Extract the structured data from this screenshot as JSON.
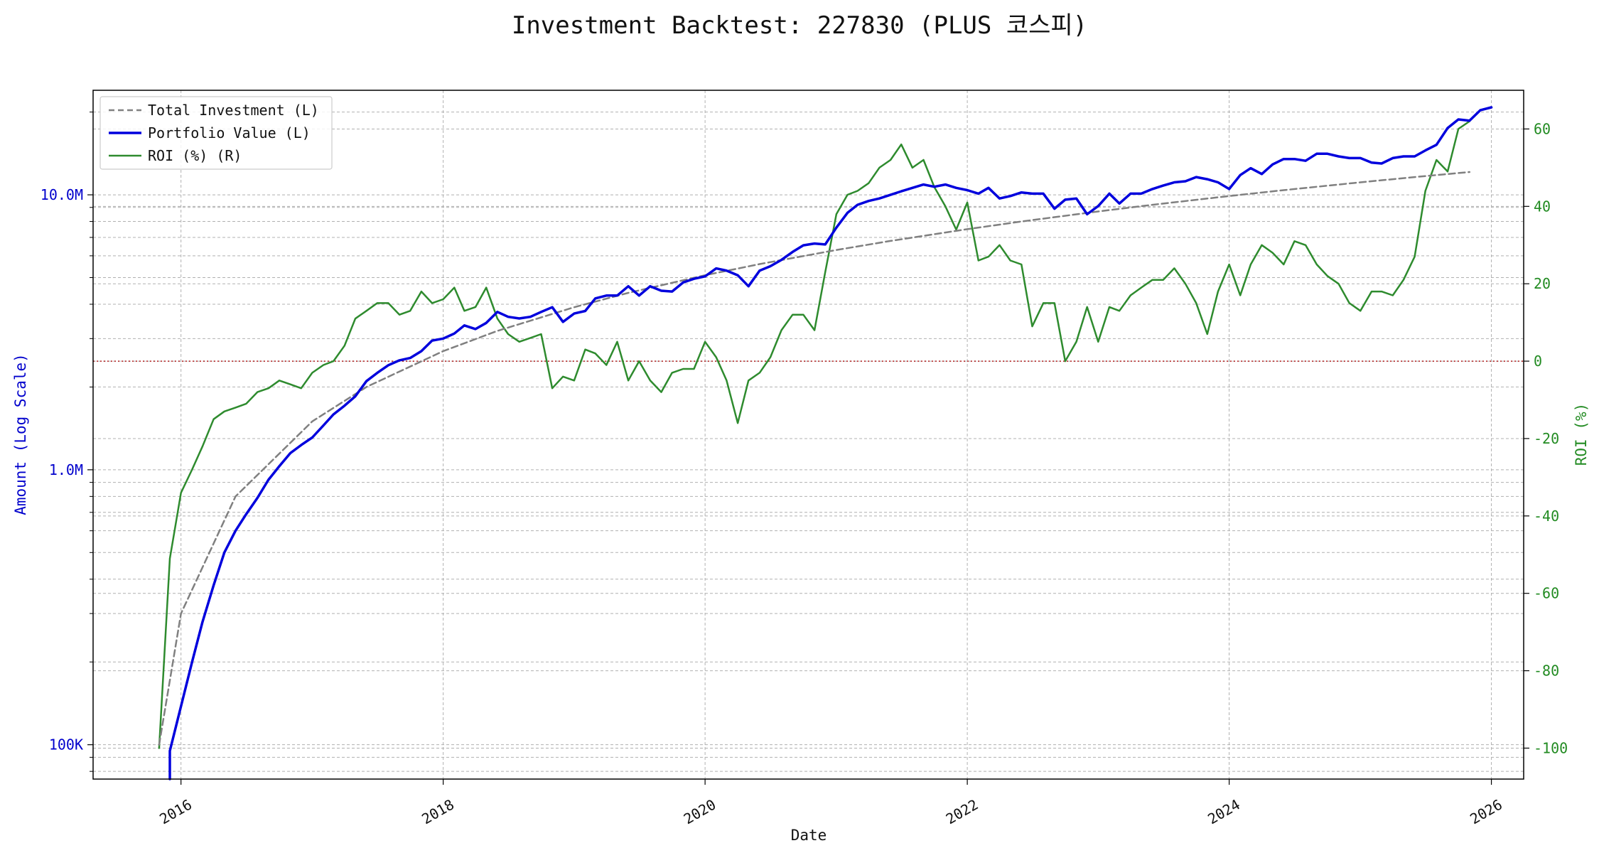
{
  "chart_data": {
    "type": "line",
    "title": "Investment Backtest: 227830 (PLUS 코스피)",
    "xlabel": "Date",
    "ylabel_left": "Amount (Log Scale)",
    "ylabel_right": "ROI (%)",
    "y_left_scale": "log",
    "y_left_range": [
      75000,
      24000000
    ],
    "y_left_ticks": [
      {
        "value": 100000,
        "label": "100K"
      },
      {
        "value": 1000000,
        "label": "1.0M"
      },
      {
        "value": 10000000,
        "label": "10.0M"
      }
    ],
    "y_right_range": [
      -108,
      70
    ],
    "y_right_ticks": [
      -100,
      -80,
      -60,
      -40,
      -20,
      0,
      20,
      40,
      60
    ],
    "x_range": [
      "2015-05-01",
      "2026-04-01"
    ],
    "x_ticks": [
      "2016",
      "2018",
      "2020",
      "2022",
      "2024",
      "2026"
    ],
    "grid": true,
    "legend_position": "upper-left",
    "reference_line": {
      "axis": "right",
      "value": 0,
      "color": "#b22222"
    },
    "colors": {
      "investment": "#808080",
      "portfolio": "#0000dd",
      "roi": "#2e8b2e",
      "left_axis": "#0000cc",
      "right_axis": "#228b22"
    },
    "series": [
      {
        "name": "Total Investment (L)",
        "axis": "left",
        "style": "dashed",
        "points": [
          [
            "2015-11-01",
            100000
          ],
          [
            "2016-01-01",
            300000
          ],
          [
            "2016-06-01",
            800000
          ],
          [
            "2017-01-01",
            1500000
          ],
          [
            "2017-06-01",
            2000000
          ],
          [
            "2018-01-01",
            2700000
          ],
          [
            "2018-06-01",
            3200000
          ],
          [
            "2019-01-01",
            3900000
          ],
          [
            "2019-06-01",
            4400000
          ],
          [
            "2020-01-01",
            5100000
          ],
          [
            "2020-06-01",
            5600000
          ],
          [
            "2021-01-01",
            6300000
          ],
          [
            "2021-06-01",
            6800000
          ],
          [
            "2022-01-01",
            7500000
          ],
          [
            "2022-06-01",
            8000000
          ],
          [
            "2023-01-01",
            8700000
          ],
          [
            "2023-06-01",
            9200000
          ],
          [
            "2024-01-01",
            9900000
          ],
          [
            "2024-06-01",
            10400000
          ],
          [
            "2025-01-01",
            11100000
          ],
          [
            "2025-06-01",
            11600000
          ],
          [
            "2025-11-01",
            12100000
          ]
        ]
      },
      {
        "name": "Portfolio Value (L)",
        "axis": "left",
        "style": "solid",
        "points": [
          [
            "2015-12-01",
            75000
          ],
          [
            "2015-12-01",
            95000
          ],
          [
            "2016-02-01",
            200000
          ],
          [
            "2016-03-01",
            280000
          ],
          [
            "2016-04-01",
            380000
          ],
          [
            "2016-05-01",
            500000
          ],
          [
            "2016-06-01",
            600000
          ],
          [
            "2016-07-01",
            690000
          ],
          [
            "2016-08-01",
            790000
          ],
          [
            "2016-09-01",
            920000
          ],
          [
            "2016-10-01",
            1030000
          ],
          [
            "2016-11-01",
            1150000
          ],
          [
            "2016-12-01",
            1230000
          ],
          [
            "2017-01-01",
            1310000
          ],
          [
            "2017-02-01",
            1450000
          ],
          [
            "2017-03-01",
            1590000
          ],
          [
            "2017-04-01",
            1710000
          ],
          [
            "2017-05-01",
            1850000
          ],
          [
            "2017-06-01",
            2100000
          ],
          [
            "2017-07-01",
            2250000
          ],
          [
            "2017-08-01",
            2400000
          ],
          [
            "2017-09-01",
            2500000
          ],
          [
            "2017-10-01",
            2550000
          ],
          [
            "2017-11-01",
            2700000
          ],
          [
            "2017-12-01",
            2950000
          ],
          [
            "2018-01-01",
            3000000
          ],
          [
            "2018-02-01",
            3130000
          ],
          [
            "2018-03-01",
            3350000
          ],
          [
            "2018-04-01",
            3250000
          ],
          [
            "2018-05-01",
            3420000
          ],
          [
            "2018-06-01",
            3750000
          ],
          [
            "2018-07-01",
            3600000
          ],
          [
            "2018-08-01",
            3550000
          ],
          [
            "2018-09-01",
            3600000
          ],
          [
            "2018-10-01",
            3750000
          ],
          [
            "2018-11-01",
            3900000
          ],
          [
            "2018-12-01",
            3450000
          ],
          [
            "2019-01-01",
            3700000
          ],
          [
            "2019-02-01",
            3780000
          ],
          [
            "2019-03-01",
            4200000
          ],
          [
            "2019-04-01",
            4300000
          ],
          [
            "2019-05-01",
            4300000
          ],
          [
            "2019-06-01",
            4650000
          ],
          [
            "2019-07-01",
            4300000
          ],
          [
            "2019-08-01",
            4650000
          ],
          [
            "2019-09-01",
            4480000
          ],
          [
            "2019-10-01",
            4450000
          ],
          [
            "2019-11-01",
            4800000
          ],
          [
            "2019-12-01",
            4950000
          ],
          [
            "2020-01-01",
            5050000
          ],
          [
            "2020-02-01",
            5400000
          ],
          [
            "2020-03-01",
            5300000
          ],
          [
            "2020-04-01",
            5100000
          ],
          [
            "2020-05-01",
            4650000
          ],
          [
            "2020-06-01",
            5300000
          ],
          [
            "2020-07-01",
            5500000
          ],
          [
            "2020-08-01",
            5800000
          ],
          [
            "2020-09-01",
            6200000
          ],
          [
            "2020-10-01",
            6550000
          ],
          [
            "2020-11-01",
            6650000
          ],
          [
            "2020-12-01",
            6600000
          ],
          [
            "2021-01-01",
            7600000
          ],
          [
            "2021-02-01",
            8600000
          ],
          [
            "2021-03-01",
            9200000
          ],
          [
            "2021-04-01",
            9500000
          ],
          [
            "2021-05-01",
            9700000
          ],
          [
            "2021-06-01",
            10000000
          ],
          [
            "2021-07-01",
            10300000
          ],
          [
            "2021-08-01",
            10600000
          ],
          [
            "2021-09-01",
            10900000
          ],
          [
            "2021-10-01",
            10700000
          ],
          [
            "2021-11-01",
            10900000
          ],
          [
            "2021-12-01",
            10600000
          ],
          [
            "2022-01-01",
            10400000
          ],
          [
            "2022-02-01",
            10100000
          ],
          [
            "2022-03-01",
            10600000
          ],
          [
            "2022-04-01",
            9700000
          ],
          [
            "2022-05-01",
            9900000
          ],
          [
            "2022-06-01",
            10200000
          ],
          [
            "2022-07-01",
            10100000
          ],
          [
            "2022-08-01",
            10100000
          ],
          [
            "2022-09-01",
            8900000
          ],
          [
            "2022-10-01",
            9600000
          ],
          [
            "2022-11-01",
            9700000
          ],
          [
            "2022-12-01",
            8500000
          ],
          [
            "2023-01-01",
            9100000
          ],
          [
            "2023-02-01",
            10100000
          ],
          [
            "2023-03-01",
            9300000
          ],
          [
            "2023-04-01",
            10100000
          ],
          [
            "2023-05-01",
            10100000
          ],
          [
            "2023-06-01",
            10500000
          ],
          [
            "2023-07-01",
            10800000
          ],
          [
            "2023-08-01",
            11100000
          ],
          [
            "2023-09-01",
            11200000
          ],
          [
            "2023-10-01",
            11600000
          ],
          [
            "2023-11-01",
            11400000
          ],
          [
            "2023-12-01",
            11100000
          ],
          [
            "2024-01-01",
            10500000
          ],
          [
            "2024-02-01",
            11800000
          ],
          [
            "2024-03-01",
            12500000
          ],
          [
            "2024-04-01",
            11900000
          ],
          [
            "2024-05-01",
            12900000
          ],
          [
            "2024-06-01",
            13500000
          ],
          [
            "2024-07-01",
            13500000
          ],
          [
            "2024-08-01",
            13300000
          ],
          [
            "2024-09-01",
            14100000
          ],
          [
            "2024-10-01",
            14100000
          ],
          [
            "2024-11-01",
            13800000
          ],
          [
            "2024-12-01",
            13600000
          ],
          [
            "2025-01-01",
            13600000
          ],
          [
            "2025-02-01",
            13100000
          ],
          [
            "2025-03-01",
            13000000
          ],
          [
            "2025-04-01",
            13600000
          ],
          [
            "2025-05-01",
            13800000
          ],
          [
            "2025-06-01",
            13800000
          ],
          [
            "2025-07-01",
            14500000
          ],
          [
            "2025-08-01",
            15200000
          ],
          [
            "2025-09-01",
            17500000
          ],
          [
            "2025-10-01",
            18800000
          ],
          [
            "2025-11-01",
            18600000
          ],
          [
            "2025-12-01",
            20300000
          ],
          [
            "2026-01-01",
            20800000
          ]
        ]
      },
      {
        "name": "ROI (%) (R)",
        "axis": "right",
        "style": "solid",
        "points": [
          [
            "2015-11-01",
            -100
          ],
          [
            "2015-12-01",
            -51
          ],
          [
            "2016-01-01",
            -34
          ],
          [
            "2016-02-01",
            -28
          ],
          [
            "2016-03-01",
            -22
          ],
          [
            "2016-04-01",
            -15
          ],
          [
            "2016-05-01",
            -13
          ],
          [
            "2016-06-01",
            -12
          ],
          [
            "2016-07-01",
            -11
          ],
          [
            "2016-08-01",
            -8
          ],
          [
            "2016-09-01",
            -7
          ],
          [
            "2016-10-01",
            -5
          ],
          [
            "2016-11-01",
            -6
          ],
          [
            "2016-12-01",
            -7
          ],
          [
            "2017-01-01",
            -3
          ],
          [
            "2017-02-01",
            -1
          ],
          [
            "2017-03-01",
            0
          ],
          [
            "2017-04-01",
            4
          ],
          [
            "2017-05-01",
            11
          ],
          [
            "2017-06-01",
            13
          ],
          [
            "2017-07-01",
            15
          ],
          [
            "2017-08-01",
            15
          ],
          [
            "2017-09-01",
            12
          ],
          [
            "2017-10-01",
            13
          ],
          [
            "2017-11-01",
            18
          ],
          [
            "2017-12-01",
            15
          ],
          [
            "2018-01-01",
            16
          ],
          [
            "2018-02-01",
            19
          ],
          [
            "2018-03-01",
            13
          ],
          [
            "2018-04-01",
            14
          ],
          [
            "2018-05-01",
            19
          ],
          [
            "2018-06-01",
            11
          ],
          [
            "2018-07-01",
            7
          ],
          [
            "2018-08-01",
            5
          ],
          [
            "2018-09-01",
            6
          ],
          [
            "2018-10-01",
            7
          ],
          [
            "2018-11-01",
            -7
          ],
          [
            "2018-12-01",
            -4
          ],
          [
            "2019-01-01",
            -5
          ],
          [
            "2019-02-01",
            3
          ],
          [
            "2019-03-01",
            2
          ],
          [
            "2019-04-01",
            -1
          ],
          [
            "2019-05-01",
            5
          ],
          [
            "2019-06-01",
            -5
          ],
          [
            "2019-07-01",
            0
          ],
          [
            "2019-08-01",
            -5
          ],
          [
            "2019-09-01",
            -8
          ],
          [
            "2019-10-01",
            -3
          ],
          [
            "2019-11-01",
            -2
          ],
          [
            "2019-12-01",
            -2
          ],
          [
            "2020-01-01",
            5
          ],
          [
            "2020-02-01",
            1
          ],
          [
            "2020-03-01",
            -5
          ],
          [
            "2020-04-01",
            -16
          ],
          [
            "2020-05-01",
            -5
          ],
          [
            "2020-06-01",
            -3
          ],
          [
            "2020-07-01",
            1
          ],
          [
            "2020-08-01",
            8
          ],
          [
            "2020-09-01",
            12
          ],
          [
            "2020-10-01",
            12
          ],
          [
            "2020-11-01",
            8
          ],
          [
            "2020-12-01",
            23
          ],
          [
            "2021-01-01",
            38
          ],
          [
            "2021-02-01",
            43
          ],
          [
            "2021-03-01",
            44
          ],
          [
            "2021-04-01",
            46
          ],
          [
            "2021-05-01",
            50
          ],
          [
            "2021-06-01",
            52
          ],
          [
            "2021-07-01",
            56
          ],
          [
            "2021-08-01",
            50
          ],
          [
            "2021-09-01",
            52
          ],
          [
            "2021-10-01",
            45
          ],
          [
            "2021-11-01",
            40
          ],
          [
            "2021-12-01",
            34
          ],
          [
            "2022-01-01",
            41
          ],
          [
            "2022-02-01",
            26
          ],
          [
            "2022-03-01",
            27
          ],
          [
            "2022-04-01",
            30
          ],
          [
            "2022-05-01",
            26
          ],
          [
            "2022-06-01",
            25
          ],
          [
            "2022-07-01",
            9
          ],
          [
            "2022-08-01",
            15
          ],
          [
            "2022-09-01",
            15
          ],
          [
            "2022-10-01",
            0
          ],
          [
            "2022-11-01",
            5
          ],
          [
            "2022-12-01",
            14
          ],
          [
            "2023-01-01",
            5
          ],
          [
            "2023-02-01",
            14
          ],
          [
            "2023-03-01",
            13
          ],
          [
            "2023-04-01",
            17
          ],
          [
            "2023-05-01",
            19
          ],
          [
            "2023-06-01",
            21
          ],
          [
            "2023-07-01",
            21
          ],
          [
            "2023-08-01",
            24
          ],
          [
            "2023-09-01",
            20
          ],
          [
            "2023-10-01",
            15
          ],
          [
            "2023-11-01",
            7
          ],
          [
            "2023-12-01",
            18
          ],
          [
            "2024-01-01",
            25
          ],
          [
            "2024-02-01",
            17
          ],
          [
            "2024-03-01",
            25
          ],
          [
            "2024-04-01",
            30
          ],
          [
            "2024-05-01",
            28
          ],
          [
            "2024-06-01",
            25
          ],
          [
            "2024-07-01",
            31
          ],
          [
            "2024-08-01",
            30
          ],
          [
            "2024-09-01",
            25
          ],
          [
            "2024-10-01",
            22
          ],
          [
            "2024-11-01",
            20
          ],
          [
            "2024-12-01",
            15
          ],
          [
            "2025-01-01",
            13
          ],
          [
            "2025-02-01",
            18
          ],
          [
            "2025-03-01",
            18
          ],
          [
            "2025-04-01",
            17
          ],
          [
            "2025-05-01",
            21
          ],
          [
            "2025-06-01",
            27
          ],
          [
            "2025-07-01",
            44
          ],
          [
            "2025-08-01",
            52
          ],
          [
            "2025-09-01",
            49
          ],
          [
            "2025-10-01",
            60
          ],
          [
            "2025-11-01",
            62
          ]
        ]
      }
    ]
  }
}
